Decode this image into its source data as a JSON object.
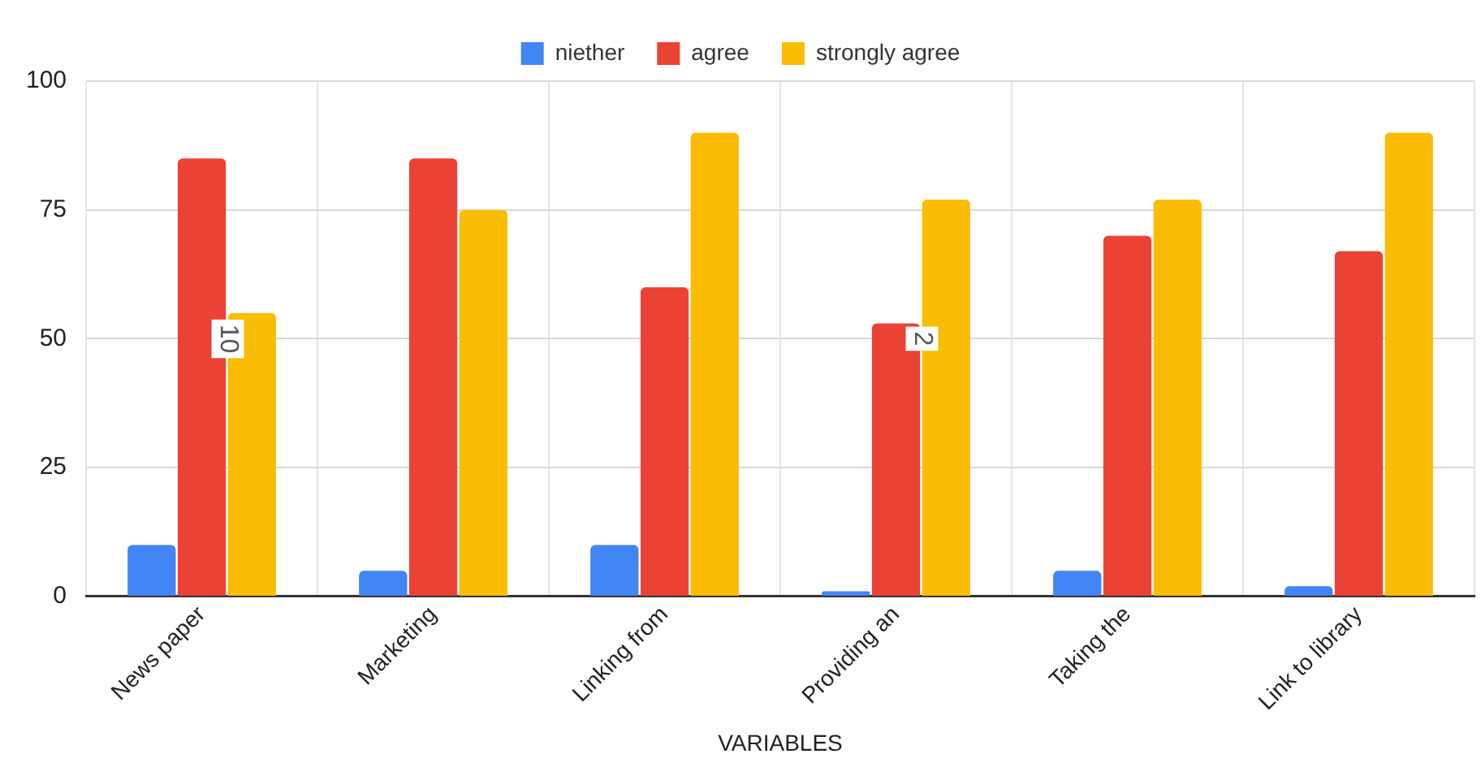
{
  "chart_data": {
    "type": "bar",
    "xlabel": "VARIABLES",
    "categories": [
      "News paper",
      "Marketing",
      "Linking from",
      "Providing an",
      "Taking the",
      "Link to library"
    ],
    "series": [
      {
        "name": "niether",
        "color": "#4285f4",
        "values": [
          10,
          5,
          10,
          1,
          5,
          2
        ]
      },
      {
        "name": "agree",
        "color": "#ea4335",
        "values": [
          85,
          85,
          60,
          53,
          70,
          67
        ]
      },
      {
        "name": "strongly agree",
        "color": "#fbbc04",
        "values": [
          55,
          75,
          90,
          77,
          77,
          90
        ]
      }
    ],
    "ylim": [
      0,
      100
    ],
    "yticks": [
      0,
      25,
      50,
      75,
      100
    ],
    "grid": true,
    "legend": "top",
    "annotations": [
      "10",
      "2"
    ]
  }
}
